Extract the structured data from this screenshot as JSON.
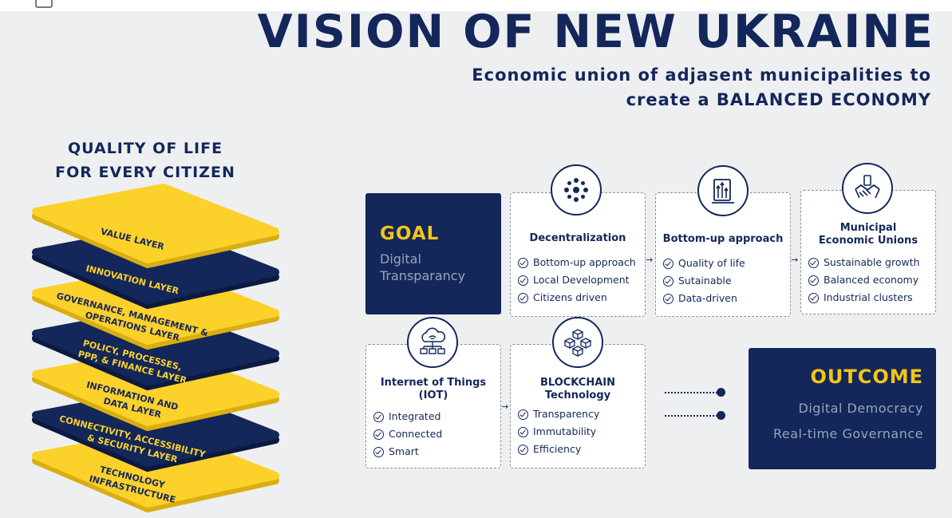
{
  "title": "VISION OF NEW UKRAINE",
  "subtitle": {
    "line1": "Economic union of adjasent municipalities to",
    "line2": "create a BALANCED ECONOMY"
  },
  "quality": {
    "line1": "QUALITY OF LIFE",
    "line2": "FOR EVERY CITIZEN"
  },
  "layers": [
    {
      "lines": [
        "VALUE LAYER"
      ],
      "color": "#fcd12a"
    },
    {
      "lines": [
        "INNOVATION LAYER"
      ],
      "color": "#13275a"
    },
    {
      "lines": [
        "GOVERNANCE, MANAGEMENT &",
        "OPERATIONS LAYER"
      ],
      "color": "#fcd12a"
    },
    {
      "lines": [
        "POLICY, PROCESSES,",
        "PPP, & FINANCE LAYER"
      ],
      "color": "#13275a"
    },
    {
      "lines": [
        "INFORMATION AND",
        "DATA LAYER"
      ],
      "color": "#fcd12a"
    },
    {
      "lines": [
        "CONNECTIVITY, ACCESSIBILITY",
        "& SECURITY LAYER"
      ],
      "color": "#13275a"
    },
    {
      "lines": [
        "TECHNOLOGY",
        "INFRASTRUCTURE"
      ],
      "color": "#fcd12a"
    }
  ],
  "goal": {
    "title": "GOAL",
    "line1": "Digital",
    "line2": "Transparancy"
  },
  "cards": {
    "decentralization": {
      "title": "Decentralization",
      "icon": "network-icon",
      "items": [
        "Bottom-up approach",
        "Local Development",
        "Citizens driven"
      ]
    },
    "bottomup": {
      "title": "Bottom-up approach",
      "icon": "growth-chart-icon",
      "items": [
        "Quality of life",
        "Sutainable",
        "Data-driven"
      ]
    },
    "municipal": {
      "title_line1": "Municipal",
      "title_line2": "Economic Unions",
      "icon": "handshake-icon",
      "items": [
        "Sustainable growth",
        "Balanced economy",
        "Industrial clusters"
      ]
    },
    "iot": {
      "title_line1": "Internet of Things",
      "title_line2": "(IOT)",
      "icon": "cloud-network-icon",
      "items": [
        "Integrated",
        "Connected",
        "Smart"
      ]
    },
    "blockchain": {
      "title_line1": "BLOCKCHAIN",
      "title_line2": "Technology",
      "icon": "blockchain-cubes-icon",
      "items": [
        "Transparency",
        "Immutability",
        "Efficiency"
      ]
    }
  },
  "outcome": {
    "title": "OUTCOME",
    "line1": "Digital Democracy",
    "line2": "Real-time Governance"
  },
  "colors": {
    "navy": "#13275a",
    "yellow": "#fcd12a",
    "accent": "#f5c518",
    "background": "#eeeff1"
  }
}
